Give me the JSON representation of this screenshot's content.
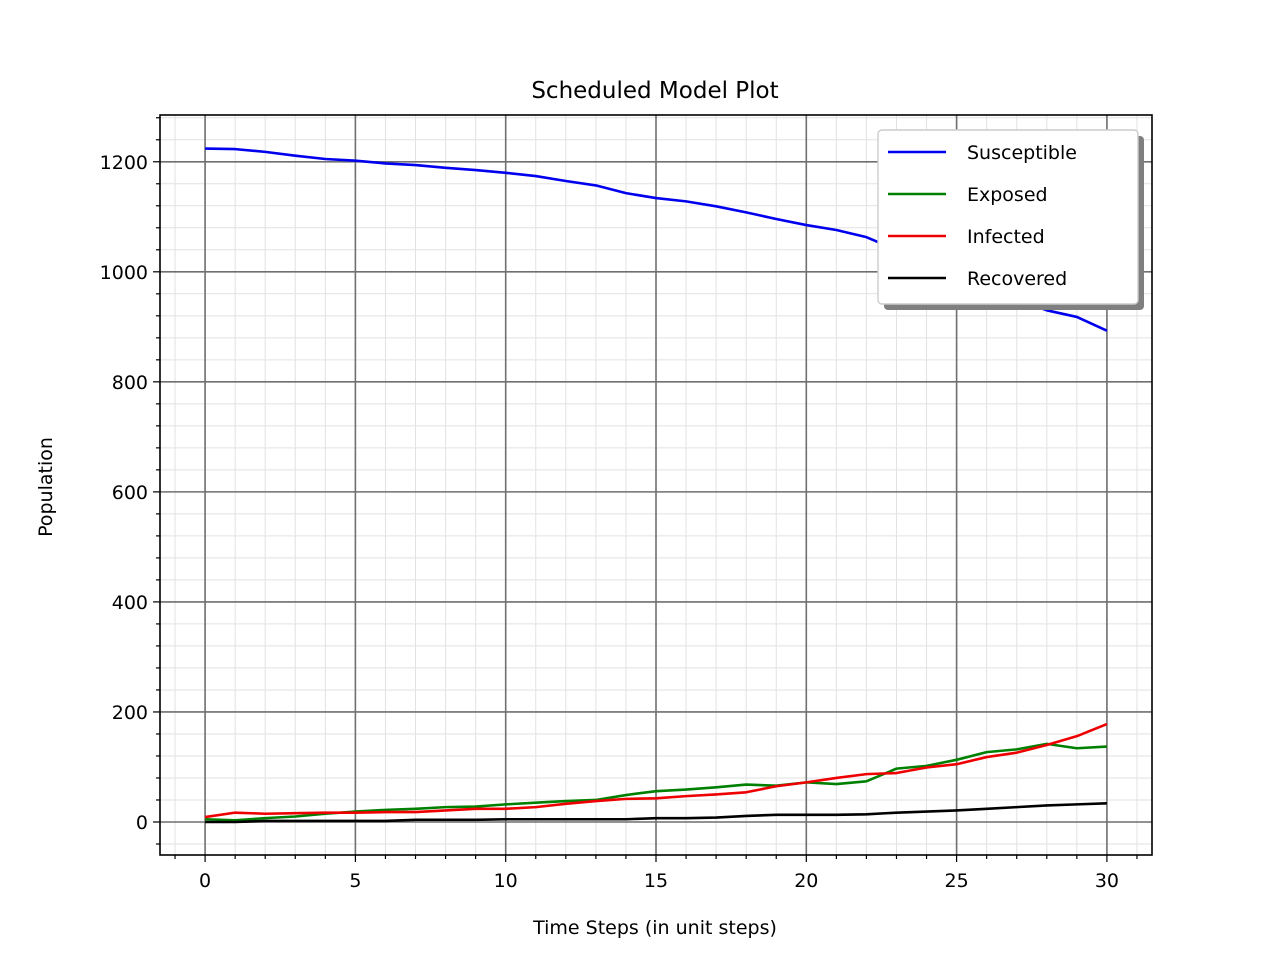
{
  "chart_data": {
    "type": "line",
    "title": "Scheduled Model Plot",
    "xlabel": "Time Steps (in unit steps)",
    "ylabel": "Population",
    "xlim": [
      -1.5,
      31.5
    ],
    "ylim": [
      -60,
      1285
    ],
    "xticks": [
      0,
      5,
      10,
      15,
      20,
      25,
      30
    ],
    "yticks": [
      0,
      200,
      400,
      600,
      800,
      1000,
      1200
    ],
    "grid": true,
    "minor_grid": true,
    "legend_position": "top-right",
    "x": [
      0,
      1,
      2,
      3,
      4,
      5,
      6,
      7,
      8,
      9,
      10,
      11,
      12,
      13,
      14,
      15,
      16,
      17,
      18,
      19,
      20,
      21,
      22,
      23,
      24,
      25,
      26,
      27,
      28,
      29,
      30
    ],
    "series": [
      {
        "name": "Susceptible",
        "color": "#0000ee",
        "values": [
          1224,
          1223,
          1218,
          1211,
          1205,
          1202,
          1197,
          1194,
          1189,
          1185,
          1180,
          1174,
          1165,
          1157,
          1143,
          1134,
          1128,
          1119,
          1108,
          1096,
          1085,
          1076,
          1063,
          1040,
          1016,
          985,
          963,
          950,
          930,
          918,
          893
        ]
      },
      {
        "name": "Exposed",
        "color": "#008000",
        "values": [
          5,
          3,
          7,
          10,
          15,
          19,
          22,
          24,
          27,
          28,
          32,
          35,
          38,
          40,
          49,
          56,
          59,
          63,
          68,
          66,
          72,
          69,
          74,
          97,
          102,
          113,
          127,
          132,
          142,
          134,
          137
        ]
      },
      {
        "name": "Infected",
        "color": "#ee0000",
        "values": [
          9,
          17,
          15,
          16,
          17,
          17,
          18,
          18,
          21,
          24,
          24,
          27,
          33,
          38,
          42,
          43,
          47,
          50,
          54,
          65,
          72,
          80,
          87,
          89,
          99,
          105,
          118,
          126,
          140,
          156,
          178
        ]
      },
      {
        "name": "Recovered",
        "color": "#000000",
        "values": [
          0,
          0,
          2,
          2,
          2,
          2,
          2,
          4,
          4,
          4,
          5,
          5,
          5,
          5,
          5,
          7,
          7,
          8,
          11,
          13,
          13,
          13,
          14,
          17,
          19,
          21,
          24,
          27,
          30,
          32,
          34
        ]
      }
    ]
  }
}
